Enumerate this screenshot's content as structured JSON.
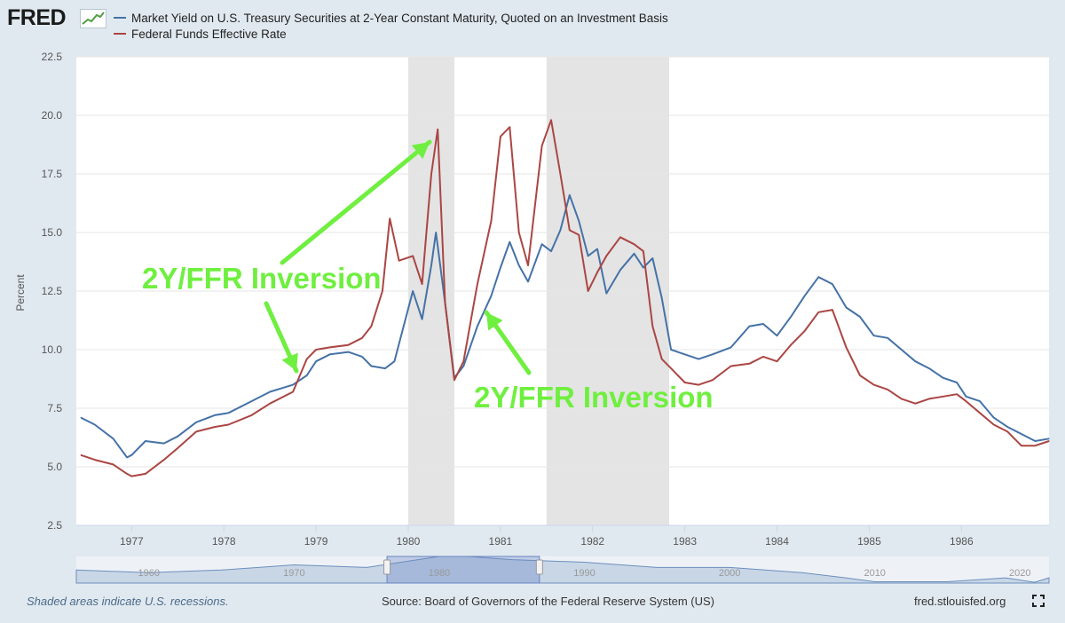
{
  "header": {
    "logo_text": "FRED",
    "legend": [
      {
        "label": "Market Yield on U.S. Treasury Securities at 2-Year Constant Maturity, Quoted on an Investment Basis",
        "color": "#4572a7"
      },
      {
        "label": "Federal Funds Effective Rate",
        "color": "#aa4643"
      }
    ]
  },
  "annotations": [
    {
      "text": "2Y/FFR Inversion",
      "color": "#6fef3f"
    },
    {
      "text": "2Y/FFR Inversion",
      "color": "#6fef3f"
    }
  ],
  "footer": {
    "note": "Shaded areas indicate U.S. recessions.",
    "source": "Source: Board of Governors of the Federal Reserve System (US)",
    "site": "fred.stlouisfed.org"
  },
  "navigator": {
    "tick_labels": [
      "1960",
      "1970",
      "1980",
      "1990",
      "2000",
      "2010",
      "2020"
    ],
    "tick_years": [
      1960,
      1970,
      1980,
      1990,
      2000,
      2010,
      2020
    ],
    "range": [
      1955,
      2022
    ],
    "selection": [
      1976.4,
      1986.9
    ]
  },
  "chart_data": {
    "type": "line",
    "title": "",
    "xlabel": "",
    "ylabel": "Percent",
    "xlim": [
      1976.4,
      1986.95
    ],
    "ylim": [
      2.5,
      22.5
    ],
    "x_ticks": [
      1977,
      1978,
      1979,
      1980,
      1981,
      1982,
      1983,
      1984,
      1985,
      1986
    ],
    "x_tick_labels": [
      "1977",
      "1978",
      "1979",
      "1980",
      "1981",
      "1982",
      "1983",
      "1984",
      "1985",
      "1986"
    ],
    "y_ticks": [
      2.5,
      5.0,
      7.5,
      10.0,
      12.5,
      15.0,
      17.5,
      20.0,
      22.5
    ],
    "y_tick_labels": [
      "2.5",
      "5.0",
      "7.5",
      "10.0",
      "12.5",
      "15.0",
      "17.5",
      "20.0",
      "22.5"
    ],
    "recessions": [
      [
        1980.0,
        1980.5
      ],
      [
        1981.5,
        1982.83
      ]
    ],
    "series": [
      {
        "name": "Market Yield on U.S. Treasury Securities at 2-Year Constant Maturity, Quoted on an Investment Basis",
        "color": "#4572a7",
        "x": [
          1976.45,
          1976.6,
          1976.8,
          1976.95,
          1977.0,
          1977.15,
          1977.35,
          1977.5,
          1977.7,
          1977.9,
          1978.05,
          1978.3,
          1978.5,
          1978.75,
          1978.9,
          1979.0,
          1979.15,
          1979.35,
          1979.5,
          1979.6,
          1979.75,
          1979.85,
          1979.95,
          1980.05,
          1980.15,
          1980.25,
          1980.3,
          1980.4,
          1980.5,
          1980.6,
          1980.75,
          1980.9,
          1981.0,
          1981.1,
          1981.2,
          1981.3,
          1981.45,
          1981.55,
          1981.65,
          1981.75,
          1981.85,
          1981.95,
          1982.05,
          1982.15,
          1982.3,
          1982.45,
          1982.55,
          1982.65,
          1982.75,
          1982.85,
          1983.0,
          1983.15,
          1983.3,
          1983.5,
          1983.7,
          1983.85,
          1984.0,
          1984.15,
          1984.3,
          1984.45,
          1984.6,
          1984.75,
          1984.9,
          1985.05,
          1985.2,
          1985.35,
          1985.5,
          1985.65,
          1985.8,
          1985.95,
          1986.05,
          1986.2,
          1986.35,
          1986.5,
          1986.65,
          1986.8,
          1986.95
        ],
        "values": [
          7.1,
          6.8,
          6.2,
          5.4,
          5.5,
          6.1,
          6.0,
          6.3,
          6.9,
          7.2,
          7.3,
          7.8,
          8.2,
          8.5,
          8.9,
          9.5,
          9.8,
          9.9,
          9.7,
          9.3,
          9.2,
          9.5,
          11.0,
          12.5,
          11.3,
          13.6,
          15.0,
          12.0,
          8.8,
          9.3,
          11.0,
          12.3,
          13.5,
          14.6,
          13.6,
          12.9,
          14.5,
          14.2,
          15.1,
          16.6,
          15.5,
          14.0,
          14.3,
          12.4,
          13.4,
          14.1,
          13.5,
          13.9,
          12.2,
          10.0,
          9.8,
          9.6,
          9.8,
          10.1,
          11.0,
          11.1,
          10.6,
          11.4,
          12.3,
          13.1,
          12.8,
          11.8,
          11.4,
          10.6,
          10.5,
          10.0,
          9.5,
          9.2,
          8.8,
          8.6,
          8.0,
          7.8,
          7.1,
          6.7,
          6.4,
          6.1,
          6.2
        ]
      },
      {
        "name": "Federal Funds Effective Rate",
        "color": "#aa4643",
        "x": [
          1976.45,
          1976.6,
          1976.8,
          1976.95,
          1977.0,
          1977.15,
          1977.35,
          1977.5,
          1977.7,
          1977.9,
          1978.05,
          1978.3,
          1978.5,
          1978.75,
          1978.9,
          1979.0,
          1979.15,
          1979.35,
          1979.5,
          1979.6,
          1979.72,
          1979.8,
          1979.9,
          1980.05,
          1980.15,
          1980.25,
          1980.32,
          1980.4,
          1980.5,
          1980.6,
          1980.75,
          1980.9,
          1981.0,
          1981.1,
          1981.2,
          1981.3,
          1981.45,
          1981.55,
          1981.65,
          1981.75,
          1981.85,
          1981.95,
          1982.05,
          1982.15,
          1982.3,
          1982.45,
          1982.55,
          1982.65,
          1982.75,
          1982.85,
          1983.0,
          1983.15,
          1983.3,
          1983.5,
          1983.7,
          1983.85,
          1984.0,
          1984.15,
          1984.3,
          1984.45,
          1984.6,
          1984.75,
          1984.9,
          1985.05,
          1985.2,
          1985.35,
          1985.5,
          1985.65,
          1985.8,
          1985.95,
          1986.05,
          1986.2,
          1986.35,
          1986.5,
          1986.65,
          1986.8,
          1986.95
        ],
        "values": [
          5.5,
          5.3,
          5.1,
          4.7,
          4.6,
          4.7,
          5.3,
          5.8,
          6.5,
          6.7,
          6.8,
          7.2,
          7.7,
          8.2,
          9.6,
          10.0,
          10.1,
          10.2,
          10.5,
          11.0,
          12.5,
          15.6,
          13.8,
          14.0,
          12.8,
          17.5,
          19.4,
          12.0,
          8.7,
          9.5,
          12.8,
          15.5,
          19.1,
          19.5,
          15.0,
          13.6,
          18.7,
          19.8,
          17.5,
          15.1,
          14.9,
          12.5,
          13.3,
          14.0,
          14.8,
          14.5,
          14.2,
          11.0,
          9.6,
          9.2,
          8.6,
          8.5,
          8.7,
          9.3,
          9.4,
          9.7,
          9.5,
          10.2,
          10.8,
          11.6,
          11.7,
          10.1,
          8.9,
          8.5,
          8.3,
          7.9,
          7.7,
          7.9,
          8.0,
          8.1,
          7.8,
          7.3,
          6.8,
          6.5,
          5.9,
          5.9,
          6.1
        ]
      }
    ]
  }
}
